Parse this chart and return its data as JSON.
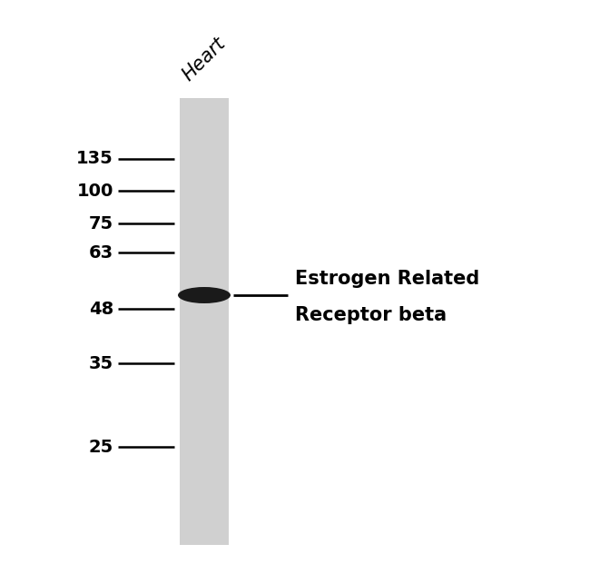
{
  "background_color": "#ffffff",
  "lane_color": "#d0d0d0",
  "band_color": "#1a1a1a",
  "marker_labels": [
    135,
    100,
    75,
    63,
    48,
    35,
    25
  ],
  "band_kda": 54,
  "lane_label": "Heart",
  "annotation_text_line1": "Estrogen Related",
  "annotation_text_line2": "Receptor beta",
  "fig_width": 6.5,
  "fig_height": 6.32,
  "dpi": 100
}
